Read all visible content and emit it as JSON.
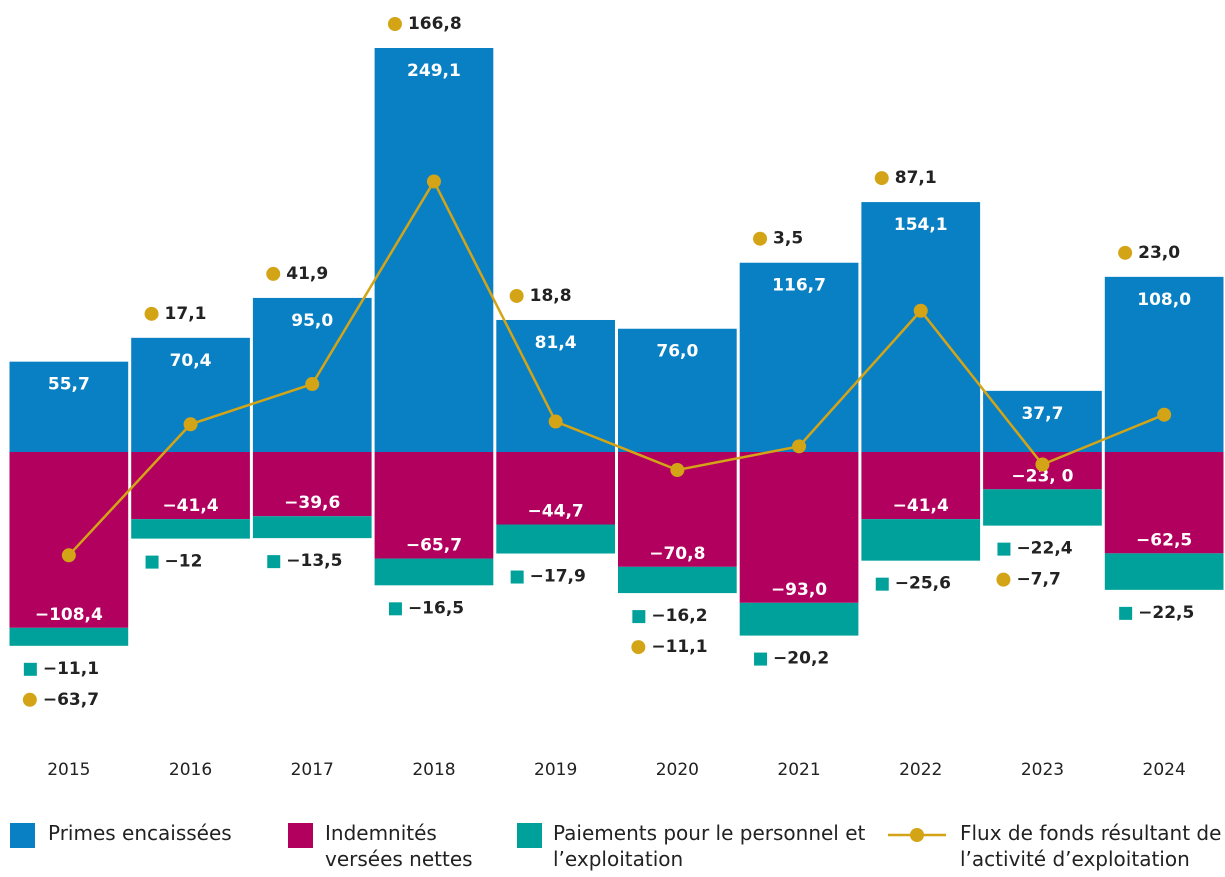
{
  "chart_data": {
    "type": "bar",
    "categories": [
      "2015",
      "2016",
      "2017",
      "2018",
      "2019",
      "2020",
      "2021",
      "2022",
      "2023",
      "2024"
    ],
    "series": [
      {
        "name": "Primes encaissées",
        "color": "#0a80c4",
        "values": [
          55.7,
          70.4,
          95.0,
          249.1,
          81.4,
          76.0,
          116.7,
          154.1,
          37.7,
          108.0
        ],
        "value_labels": [
          "55,7",
          "70,4",
          "95,0",
          "249,1",
          "81,4",
          "76,0",
          "116,7",
          "154,1",
          "37,7",
          "108,0"
        ]
      },
      {
        "name": "Indemnités versées nettes",
        "color": "#b2005f",
        "values": [
          -108.4,
          -41.4,
          -39.6,
          -65.7,
          -44.7,
          -70.8,
          -93.0,
          -41.4,
          -23.0,
          -62.5
        ],
        "value_labels": [
          "−108,4",
          "−41,4",
          "−39,6",
          "−65,7",
          "−44,7",
          "−70,8",
          "−93,0",
          "−41,4",
          "−23, 0",
          "−62,5"
        ]
      },
      {
        "name": "Paiements pour le personnel et l’exploitation",
        "color": "#00a19b",
        "values": [
          -11.1,
          -12,
          -13.5,
          -16.5,
          -17.9,
          -16.2,
          -20.2,
          -25.6,
          -22.4,
          -22.5
        ],
        "value_labels": [
          "−11,1",
          "−12",
          "−13,5",
          "−16,5",
          "−17,9",
          "−16,2",
          "−20,2",
          "−25,6",
          "−22,4",
          "−22,5"
        ]
      },
      {
        "name": "Flux de fonds résultant de l’activité d’exploitation",
        "color": "#d4a417",
        "type": "line",
        "values": [
          -63.7,
          17.1,
          41.9,
          166.8,
          18.8,
          -11.1,
          3.5,
          87.1,
          -7.7,
          23.0
        ],
        "value_labels": [
          "−63,7",
          "17,1",
          "41,9",
          "166,8",
          "18,8",
          "−11,1",
          "3,5",
          "87,1",
          "−7,7",
          "23,0"
        ]
      }
    ]
  }
}
